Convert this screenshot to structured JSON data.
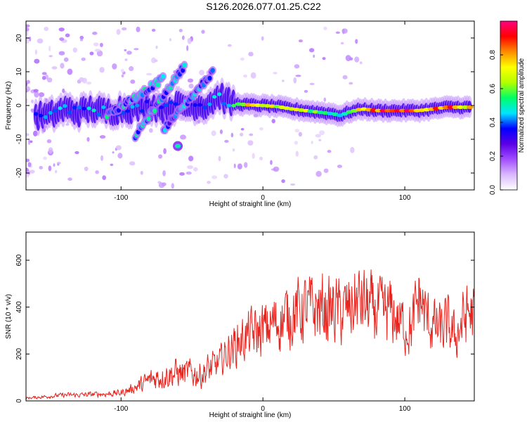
{
  "title": "S126.2026.077.01.25.C22",
  "chart_data": [
    {
      "type": "heatmap",
      "xlabel": "Height of straight line (km)",
      "ylabel": "Frequency (Hz)",
      "xlim": [
        -167,
        149
      ],
      "ylim": [
        -25,
        25
      ],
      "xticks": [
        -100,
        0,
        100
      ],
      "yticks": [
        -20,
        -10,
        0,
        10,
        20
      ],
      "colorbar": {
        "label": "Normalized spectral amplitude",
        "range": [
          0,
          1
        ],
        "ticks": [
          0.0,
          0.2,
          0.4,
          0.6,
          0.8
        ],
        "tick_labels": [
          "0.0",
          "0.2",
          "0.4",
          "0.6",
          "0.8"
        ],
        "colors": [
          "#ffffff",
          "#d9b8ff",
          "#a14dff",
          "#5a00e6",
          "#0000ff",
          "#00e5ff",
          "#00ff66",
          "#b3ff00",
          "#ffff00",
          "#ff8c00",
          "#ff0000",
          "#ff0080"
        ]
      },
      "ridge": [
        {
          "x": -160,
          "f": -3,
          "a": 0.35
        },
        {
          "x": -150,
          "f": -3,
          "a": 0.4
        },
        {
          "x": -140,
          "f": -1,
          "a": 0.45
        },
        {
          "x": -130,
          "f": -2,
          "a": 0.4
        },
        {
          "x": -120,
          "f": -1,
          "a": 0.45
        },
        {
          "x": -110,
          "f": -2,
          "a": 0.4
        },
        {
          "x": -100,
          "f": -1,
          "a": 0.4
        },
        {
          "x": -90,
          "f": -1,
          "a": 0.4
        },
        {
          "x": -80,
          "f": 0,
          "a": 0.35
        },
        {
          "x": -70,
          "f": -1,
          "a": 0.35
        },
        {
          "x": -60,
          "f": 0,
          "a": 0.35
        },
        {
          "x": -50,
          "f": 0,
          "a": 0.35
        },
        {
          "x": -40,
          "f": 0,
          "a": 0.35
        },
        {
          "x": -30,
          "f": 3,
          "a": 0.5
        },
        {
          "x": -25,
          "f": 1,
          "a": 0.45
        },
        {
          "x": -20,
          "f": 0.5,
          "a": 0.55
        },
        {
          "x": -10,
          "f": 0.2,
          "a": 0.75
        },
        {
          "x": 0,
          "f": 0,
          "a": 0.7
        },
        {
          "x": 10,
          "f": -0.3,
          "a": 0.65
        },
        {
          "x": 20,
          "f": -1,
          "a": 0.7
        },
        {
          "x": 30,
          "f": -1.5,
          "a": 0.65
        },
        {
          "x": 40,
          "f": -2,
          "a": 0.55
        },
        {
          "x": 50,
          "f": -2.5,
          "a": 0.5
        },
        {
          "x": 55,
          "f": -3,
          "a": 0.45
        },
        {
          "x": 60,
          "f": -2,
          "a": 0.6
        },
        {
          "x": 70,
          "f": -1,
          "a": 0.75
        },
        {
          "x": 80,
          "f": -1.5,
          "a": 0.8
        },
        {
          "x": 90,
          "f": -1.5,
          "a": 0.9
        },
        {
          "x": 100,
          "f": -1.5,
          "a": 0.9
        },
        {
          "x": 110,
          "f": -1.5,
          "a": 0.85
        },
        {
          "x": 120,
          "f": -1,
          "a": 0.8
        },
        {
          "x": 130,
          "f": -0.5,
          "a": 0.85
        },
        {
          "x": 140,
          "f": -0.5,
          "a": 0.8
        },
        {
          "x": 147,
          "f": -0.5,
          "a": 0.7
        }
      ],
      "branches": [
        {
          "x0": -110,
          "f0": -3,
          "x1": -70,
          "f1": 8,
          "a": 0.45
        },
        {
          "x0": -90,
          "f0": -9,
          "x1": -55,
          "f1": 12,
          "a": 0.45
        },
        {
          "x0": -70,
          "f0": -7,
          "x1": -35,
          "f1": 10,
          "a": 0.4
        }
      ],
      "blobs": [
        {
          "x": -60,
          "f": -12,
          "a": 0.5
        }
      ]
    },
    {
      "type": "line",
      "xlabel": "Height of straight line (km)",
      "ylabel": "SNR (10 * v/v)",
      "xlim": [
        -167,
        149
      ],
      "ylim": [
        0,
        720
      ],
      "xticks": [
        -100,
        0,
        100
      ],
      "yticks": [
        0,
        200,
        400,
        600
      ],
      "line_color": "#e8241e",
      "series": [
        {
          "name": "SNR",
          "x": [
            -167,
            -160,
            -150,
            -140,
            -130,
            -120,
            -110,
            -100,
            -95,
            -90,
            -85,
            -80,
            -75,
            -70,
            -65,
            -60,
            -55,
            -50,
            -45,
            -40,
            -35,
            -30,
            -25,
            -20,
            -15,
            -10,
            -5,
            0,
            5,
            10,
            15,
            20,
            25,
            30,
            35,
            40,
            45,
            50,
            55,
            60,
            65,
            70,
            75,
            80,
            85,
            90,
            95,
            100,
            105,
            110,
            115,
            120,
            125,
            130,
            135,
            140,
            145,
            149
          ],
          "y": [
            12,
            15,
            20,
            25,
            25,
            28,
            30,
            35,
            45,
            60,
            70,
            90,
            100,
            110,
            115,
            120,
            115,
            120,
            110,
            130,
            140,
            170,
            210,
            240,
            260,
            280,
            290,
            300,
            320,
            340,
            350,
            380,
            380,
            390,
            390,
            400,
            380,
            390,
            370,
            390,
            420,
            420,
            390,
            380,
            370,
            380,
            340,
            320,
            310,
            450,
            350,
            320,
            300,
            320,
            270,
            330,
            380,
            360
          ]
        }
      ]
    }
  ]
}
